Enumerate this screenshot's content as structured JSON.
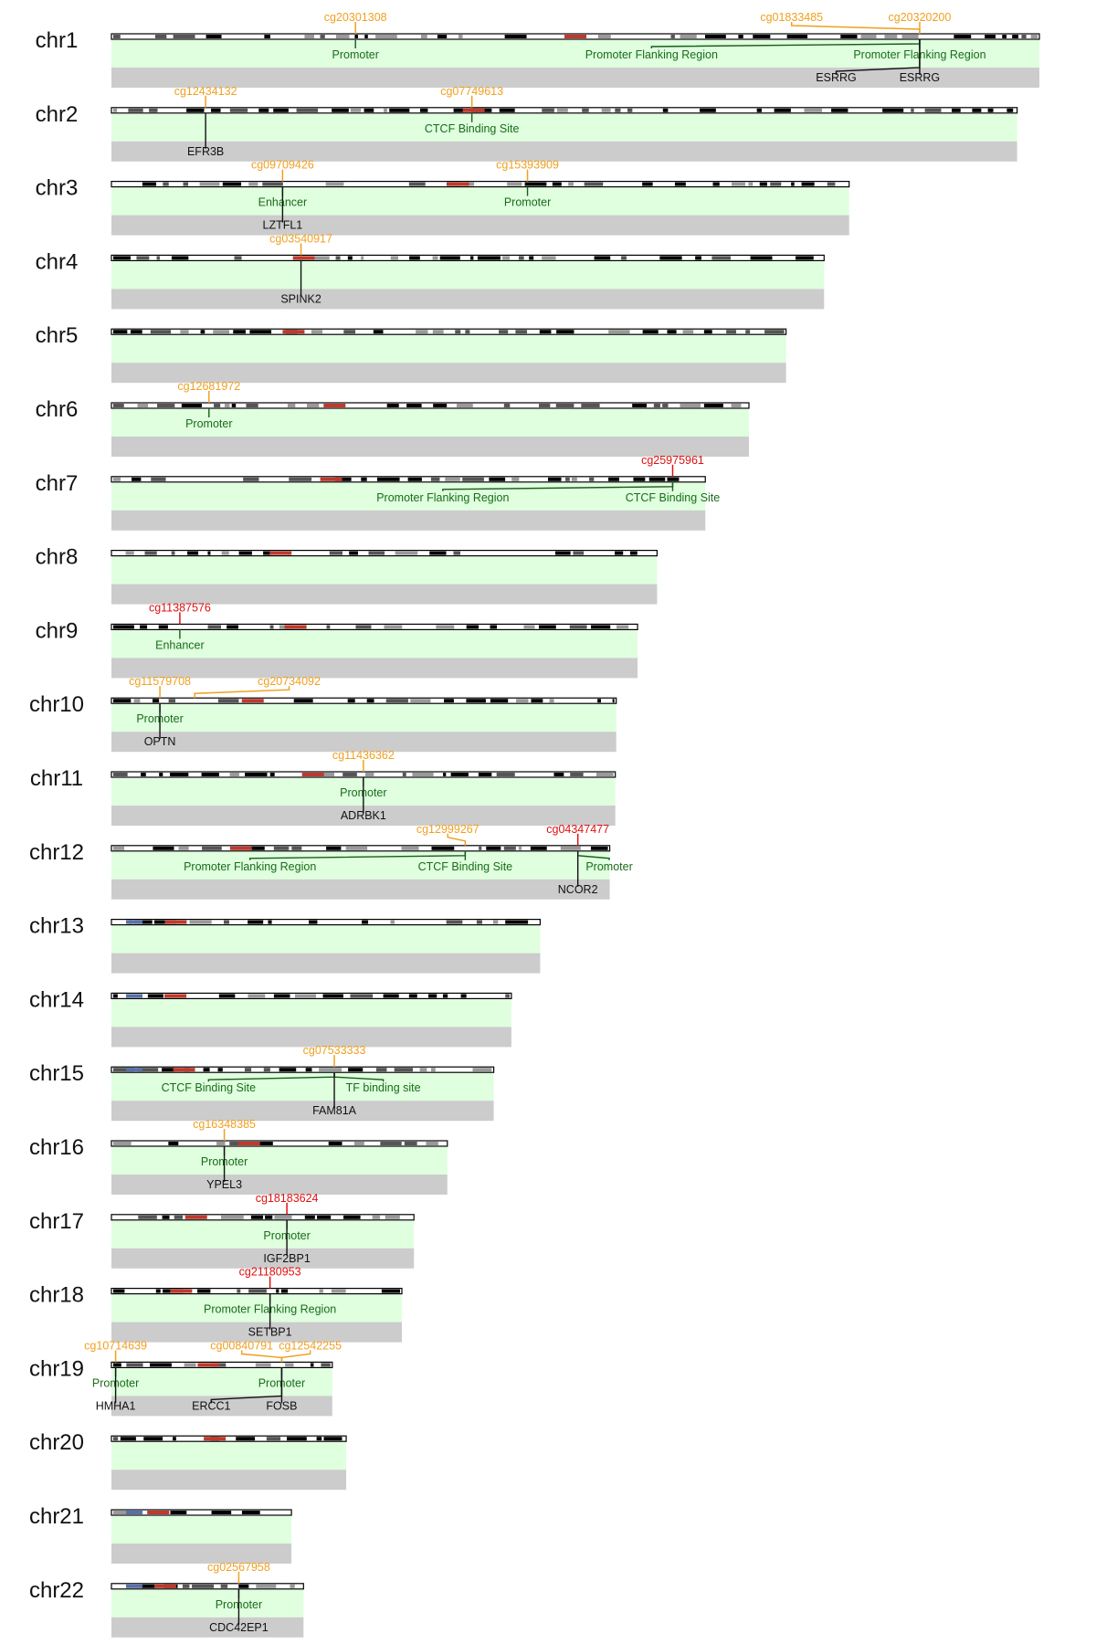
{
  "colors": {
    "probe_normal": "#f0a020",
    "probe_highlight": "#e01010",
    "region_track": "#dfffdf",
    "region_text": "#1a6b1a",
    "gene_track": "#cccccc",
    "gene_text": "#111111",
    "ideogram_outline": "#000000",
    "centromere": "#c0392b",
    "acrocentric_p": "#5870a8"
  },
  "chromosomes": [
    {
      "name": "chr1",
      "len": 1.0,
      "cen": 0.5,
      "probes": [
        {
          "id": "cg20301308",
          "pos": 0.263,
          "label": 0.263,
          "color": "normal",
          "regions": [
            {
              "type": "Promoter",
              "label": 0.263
            }
          ],
          "genes": []
        },
        {
          "id": "cg01833485",
          "pos": 0.871,
          "label": 0.733,
          "color": "normal",
          "regions": [
            {
              "type": "Promoter Flanking Region",
              "label": 0.582
            }
          ],
          "genes": [
            {
              "name": "ESRRG",
              "label": 0.781
            }
          ]
        },
        {
          "id": "cg20320200",
          "pos": 0.871,
          "label": 0.871,
          "color": "normal",
          "regions": [
            {
              "type": "Promoter Flanking Region",
              "label": 0.871
            }
          ],
          "genes": [
            {
              "name": "ESRRG",
              "label": 0.871
            }
          ]
        }
      ]
    },
    {
      "name": "chr2",
      "len": 0.976,
      "cen": 0.4,
      "probes": [
        {
          "id": "cg12434132",
          "pos": 0.104,
          "label": 0.104,
          "color": "normal",
          "regions": [],
          "genes": [
            {
              "name": "EFR3B",
              "label": 0.104
            }
          ]
        },
        {
          "id": "cg07749613",
          "pos": 0.398,
          "label": 0.398,
          "color": "normal",
          "regions": [
            {
              "type": "CTCF Binding Site",
              "label": 0.398
            }
          ],
          "genes": []
        }
      ]
    },
    {
      "name": "chr3",
      "len": 0.795,
      "cen": 0.47,
      "probes": [
        {
          "id": "cg09709426",
          "pos": 0.232,
          "label": 0.232,
          "color": "normal",
          "regions": [
            {
              "type": "Enhancer",
              "label": 0.232
            }
          ],
          "genes": [
            {
              "name": "LZTFL1",
              "label": 0.232
            }
          ]
        },
        {
          "id": "cg15393909",
          "pos": 0.564,
          "label": 0.564,
          "color": "normal",
          "regions": [
            {
              "type": "Promoter",
              "label": 0.564
            }
          ],
          "genes": []
        }
      ]
    },
    {
      "name": "chr4",
      "len": 0.768,
      "cen": 0.27,
      "probes": [
        {
          "id": "cg03540917",
          "pos": 0.266,
          "label": 0.266,
          "color": "normal",
          "regions": [],
          "genes": [
            {
              "name": "SPINK2",
              "label": 0.266
            }
          ]
        }
      ]
    },
    {
      "name": "chr5",
      "len": 0.727,
      "cen": 0.27,
      "probes": []
    },
    {
      "name": "chr6",
      "len": 0.687,
      "cen": 0.35,
      "probes": [
        {
          "id": "cg12681972",
          "pos": 0.153,
          "label": 0.153,
          "color": "normal",
          "regions": [
            {
              "type": "Promoter",
              "label": 0.153
            }
          ],
          "genes": []
        }
      ]
    },
    {
      "name": "chr7",
      "len": 0.64,
      "cen": 0.37,
      "probes": [
        {
          "id": "cg25975961",
          "pos": 0.945,
          "label": 0.945,
          "color": "highlight",
          "regions": [
            {
              "type": "Promoter Flanking Region",
              "label": 0.558
            },
            {
              "type": "CTCF Binding Site",
              "label": 0.945
            }
          ],
          "genes": []
        }
      ]
    },
    {
      "name": "chr8",
      "len": 0.588,
      "cen": 0.31,
      "probes": []
    },
    {
      "name": "chr9",
      "len": 0.567,
      "cen": 0.35,
      "probes": [
        {
          "id": "cg11387576",
          "pos": 0.13,
          "label": 0.13,
          "color": "highlight",
          "regions": [
            {
              "type": "Enhancer",
              "label": 0.13
            }
          ],
          "genes": []
        }
      ]
    },
    {
      "name": "chr10",
      "len": 0.544,
      "cen": 0.28,
      "probes": [
        {
          "id": "cg11579708",
          "pos": 0.096,
          "label": 0.096,
          "color": "normal",
          "regions": [
            {
              "type": "Promoter",
              "label": 0.096
            }
          ],
          "genes": [
            {
              "name": "OPTN",
              "label": 0.096
            }
          ]
        },
        {
          "id": "cg20734092",
          "pos": 0.165,
          "label": 0.352,
          "color": "normal",
          "regions": [],
          "genes": []
        }
      ]
    },
    {
      "name": "chr11",
      "len": 0.543,
      "cen": 0.4,
      "probes": [
        {
          "id": "cg11436362",
          "pos": 0.5,
          "label": 0.5,
          "color": "normal",
          "regions": [
            {
              "type": "Promoter",
              "label": 0.5
            }
          ],
          "genes": [
            {
              "name": "ADRBK1",
              "label": 0.5
            }
          ]
        }
      ]
    },
    {
      "name": "chr12",
      "len": 0.537,
      "cen": 0.26,
      "probes": [
        {
          "id": "cg12999267",
          "pos": 0.71,
          "label": 0.675,
          "color": "normal",
          "regions": [
            {
              "type": "Promoter Flanking Region",
              "label": 0.278
            },
            {
              "type": "CTCF Binding Site",
              "label": 0.71
            }
          ],
          "genes": []
        },
        {
          "id": "cg04347477",
          "pos": 0.936,
          "label": 0.936,
          "color": "highlight",
          "regions": [
            {
              "type": "Promoter",
              "label": 0.999
            }
          ],
          "genes": [
            {
              "name": "NCOR2",
              "label": 0.936
            }
          ]
        }
      ]
    },
    {
      "name": "chr13",
      "len": 0.462,
      "cen": 0.15,
      "probes": []
    },
    {
      "name": "chr14",
      "len": 0.431,
      "cen": 0.16,
      "probes": []
    },
    {
      "name": "chr15",
      "len": 0.412,
      "cen": 0.19,
      "probes": [
        {
          "id": "cg07533333",
          "pos": 0.583,
          "label": 0.583,
          "color": "normal",
          "regions": [
            {
              "type": "CTCF Binding Site",
              "label": 0.254
            },
            {
              "type": "TF binding site",
              "label": 0.711
            }
          ],
          "genes": [
            {
              "name": "FAM81A",
              "label": 0.583
            }
          ]
        }
      ]
    },
    {
      "name": "chr16",
      "len": 0.362,
      "cen": 0.41,
      "probes": [
        {
          "id": "cg16348385",
          "pos": 0.336,
          "label": 0.336,
          "color": "normal",
          "regions": [
            {
              "type": "Promoter",
              "label": 0.336
            }
          ],
          "genes": [
            {
              "name": "YPEL3",
              "label": 0.336
            }
          ]
        }
      ]
    },
    {
      "name": "chr17",
      "len": 0.326,
      "cen": 0.28,
      "probes": [
        {
          "id": "cg18183624",
          "pos": 0.58,
          "label": 0.58,
          "color": "highlight",
          "regions": [
            {
              "type": "Promoter",
              "label": 0.58
            }
          ],
          "genes": [
            {
              "name": "IGF2BP1",
              "label": 0.58
            }
          ]
        }
      ]
    },
    {
      "name": "chr18",
      "len": 0.313,
      "cen": 0.24,
      "probes": [
        {
          "id": "cg21180953",
          "pos": 0.546,
          "label": 0.546,
          "color": "highlight",
          "regions": [
            {
              "type": "Promoter Flanking Region",
              "label": 0.546
            }
          ],
          "genes": [
            {
              "name": "SETBP1",
              "label": 0.546
            }
          ]
        }
      ]
    },
    {
      "name": "chr19",
      "len": 0.238,
      "cen": 0.44,
      "probes": [
        {
          "id": "cg10714639",
          "pos": 0.019,
          "label": 0.019,
          "color": "normal",
          "regions": [
            {
              "type": "Promoter",
              "label": 0.019
            }
          ],
          "genes": [
            {
              "name": "HMHA1",
              "label": 0.019
            }
          ]
        },
        {
          "id": "cg00840791",
          "pos": 0.771,
          "label": 0.59,
          "color": "normal",
          "regions": [],
          "genes": [
            {
              "name": "ERCC1",
              "label": 0.452
            }
          ]
        },
        {
          "id": "cg12542255",
          "pos": 0.771,
          "label": 0.9,
          "color": "normal",
          "regions": [
            {
              "type": "Promoter",
              "label": 0.771
            }
          ],
          "genes": [
            {
              "name": "FOSB",
              "label": 0.771
            }
          ]
        }
      ]
    },
    {
      "name": "chr20",
      "len": 0.253,
      "cen": 0.44,
      "probes": []
    },
    {
      "name": "chr21",
      "len": 0.194,
      "cen": 0.26,
      "probes": []
    },
    {
      "name": "chr22",
      "len": 0.207,
      "cen": 0.28,
      "probes": [
        {
          "id": "cg02567958",
          "pos": 0.663,
          "label": 0.663,
          "color": "normal",
          "regions": [
            {
              "type": "Promoter",
              "label": 0.663
            }
          ],
          "genes": [
            {
              "name": "CDC42EP1",
              "label": 0.663
            }
          ]
        }
      ]
    }
  ]
}
